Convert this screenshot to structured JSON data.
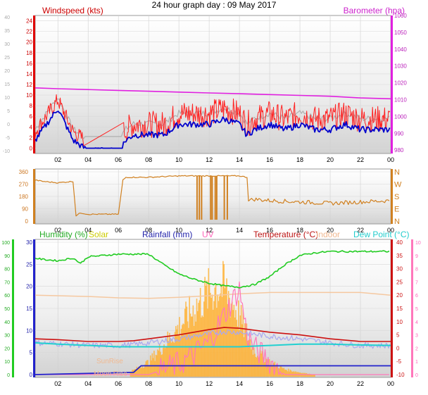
{
  "title": "24 hour graph day : 09 May 2017",
  "colors": {
    "windspeed": "#e00000",
    "windgust": "#ff2020",
    "windavg": "#0000cc",
    "windgray": "#b0b0b0",
    "barometer": "#e020e0",
    "direction": "#d08020",
    "humidity": "#22cc22",
    "solar": "#ffb030",
    "rainfall": "#2222cc",
    "uv": "#ff77bb",
    "temperature": "#cc1111",
    "indoor": "#f5c8a0",
    "dewpoint": "#22d0d0"
  },
  "chart_data": [
    {
      "type": "line",
      "name": "wind-barometer",
      "xticks": [
        "02",
        "04",
        "06",
        "08",
        "10",
        "12",
        "14",
        "16",
        "18",
        "20",
        "22",
        "00"
      ],
      "left_axis": {
        "label": "Windspeed (kts)",
        "ylim": [
          -1,
          25
        ],
        "ticks": [
          "24",
          "22",
          "20",
          "18",
          "16",
          "14",
          "12",
          "10",
          "8",
          "6",
          "4",
          "2",
          "0"
        ]
      },
      "outer_left_axis": {
        "ticks": [
          "40",
          "35",
          "30",
          "25",
          "20",
          "15",
          "10",
          "5",
          "0",
          "-5",
          "-10"
        ]
      },
      "right_axis": {
        "label": "Barometer (hpa)",
        "ylim": [
          978,
          1060
        ],
        "ticks": [
          "1060",
          "1050",
          "1040",
          "1030",
          "1020",
          "1010",
          "1000",
          "990",
          "980"
        ]
      },
      "series": [
        {
          "name": "Windspeed (kts)",
          "x": [
            0.5,
            1,
            1.5,
            2,
            2.5,
            3,
            3.5,
            4,
            5,
            6,
            6.5,
            7,
            8,
            9,
            10,
            11,
            12,
            13,
            14,
            14.5,
            15,
            16,
            17,
            18,
            19,
            20,
            21,
            22,
            23,
            24
          ],
          "y": [
            2,
            4,
            6,
            8,
            5,
            2,
            1,
            0,
            0,
            0,
            2,
            3,
            3,
            3,
            5,
            5,
            5,
            6,
            5,
            3,
            4,
            5,
            4,
            5,
            4,
            4,
            5,
            4,
            4,
            4
          ]
        },
        {
          "name": "Barometer (hpa)",
          "x": [
            0.5,
            2,
            4,
            6,
            8,
            10,
            12,
            14,
            16,
            18,
            20,
            22,
            24
          ],
          "y": [
            1017,
            1016.5,
            1016,
            1015.5,
            1015,
            1014.5,
            1014,
            1013.5,
            1013,
            1012.5,
            1012,
            1011,
            1010.5
          ]
        }
      ]
    },
    {
      "type": "line",
      "name": "wind-direction",
      "xticks": [
        "02",
        "04",
        "06",
        "08",
        "10",
        "12",
        "14",
        "16",
        "18",
        "20",
        "22",
        "00"
      ],
      "left_axis": {
        "ticks": [
          "360",
          "270",
          "180",
          "90",
          "0"
        ]
      },
      "right_axis": {
        "ticks": [
          "N",
          "W",
          "S",
          "E",
          "N"
        ]
      },
      "series": [
        {
          "name": "Direction",
          "x": [
            0.5,
            1,
            2,
            3,
            3.2,
            3.5,
            4,
            5,
            6,
            6.3,
            6.5,
            8,
            10,
            12,
            14,
            14.5,
            14.6,
            15,
            16,
            18,
            20,
            22,
            24
          ],
          "y": [
            300,
            290,
            280,
            290,
            40,
            60,
            50,
            50,
            50,
            300,
            320,
            320,
            330,
            330,
            330,
            320,
            150,
            160,
            150,
            140,
            130,
            140,
            150
          ]
        }
      ]
    },
    {
      "type": "line",
      "name": "multi-sensor",
      "xticks": [
        "02",
        "04",
        "06",
        "08",
        "10",
        "12",
        "14",
        "16",
        "18",
        "20",
        "22",
        "00"
      ],
      "legend": [
        "Humidity (%)",
        "Solar",
        "Rainfall (mm)",
        "UV",
        "Temperature (°C)",
        "Indoor",
        "Dew Point (°C)"
      ],
      "humidity_axis": {
        "ticks": [
          "100",
          "90",
          "80",
          "70",
          "60",
          "50",
          "40",
          "30",
          "20",
          "10",
          "0"
        ]
      },
      "left_axis": {
        "ticks": [
          "30",
          "25",
          "20",
          "15",
          "10",
          "5",
          "0"
        ]
      },
      "temp_axis": {
        "ticks": [
          "40",
          "35",
          "30",
          "25",
          "20",
          "15",
          "10",
          "5",
          "0",
          "-5",
          "-10"
        ]
      },
      "uv_axis": {
        "ticks": [
          "10",
          "9",
          "8",
          "7",
          "6",
          "5",
          "4",
          "3",
          "2",
          "1",
          "0"
        ]
      },
      "annotations": [
        "SunRise",
        "Moon Rise"
      ],
      "series": [
        {
          "name": "Humidity (%)",
          "x": [
            0.5,
            1,
            2,
            3,
            3.5,
            4,
            5,
            6,
            7,
            8,
            9,
            10,
            11,
            12,
            13,
            14,
            15,
            16,
            17,
            18,
            19,
            20,
            22,
            24
          ],
          "y": [
            88,
            87,
            86,
            88,
            84,
            89,
            90,
            91,
            91,
            91,
            83,
            76,
            72,
            69,
            67,
            66,
            68,
            74,
            83,
            90,
            92,
            93,
            93,
            93
          ]
        },
        {
          "name": "Solar",
          "x": [
            0.5,
            6,
            7,
            8,
            9,
            10,
            11,
            12,
            12.5,
            13,
            14,
            15,
            16,
            17,
            18,
            19,
            24
          ],
          "y": [
            0,
            0,
            4,
            12,
            28,
            45,
            62,
            78,
            82,
            82,
            55,
            22,
            12,
            5,
            2,
            0,
            0
          ]
        },
        {
          "name": "Rainfall (mm)",
          "x": [
            0.5,
            7,
            7.5,
            8,
            9,
            10,
            12,
            14,
            16,
            18,
            20,
            22,
            23.5,
            24
          ],
          "y": [
            0,
            0.5,
            2,
            2,
            2,
            2,
            2,
            2,
            2,
            2,
            2,
            2,
            2,
            2
          ]
        },
        {
          "name": "UV",
          "x": [
            0.5,
            8,
            10,
            11,
            12,
            13,
            14,
            14.5,
            15,
            16,
            17,
            24
          ],
          "y": [
            0,
            0,
            0.8,
            1.5,
            2.5,
            4.5,
            6.5,
            3,
            2,
            1,
            0,
            0
          ]
        },
        {
          "name": "Temperature (°C)",
          "x": [
            0.5,
            2,
            4,
            6,
            7,
            8,
            10,
            12,
            13,
            14,
            16,
            18,
            20,
            22,
            24
          ],
          "y": [
            3.5,
            3.2,
            2.5,
            2.5,
            2.8,
            3.5,
            5,
            7,
            7.8,
            7.5,
            6,
            5,
            3.5,
            2.5,
            2.5
          ]
        },
        {
          "name": "Indoor",
          "x": [
            0.5,
            2,
            4,
            6,
            8,
            10,
            12,
            14,
            16,
            18,
            20,
            22,
            24
          ],
          "y": [
            20,
            19.8,
            19.5,
            19,
            18.8,
            19.2,
            19.8,
            20.5,
            21,
            21,
            21,
            21,
            20
          ]
        },
        {
          "name": "Dew Point (°C)",
          "x": [
            0.5,
            2,
            4,
            6,
            8,
            10,
            12,
            14,
            16,
            18,
            20,
            22,
            24
          ],
          "y": [
            2,
            1.5,
            1,
            0.5,
            0.5,
            0.5,
            0.5,
            0.5,
            1,
            1.5,
            1.5,
            1.2,
            1
          ]
        }
      ]
    }
  ]
}
